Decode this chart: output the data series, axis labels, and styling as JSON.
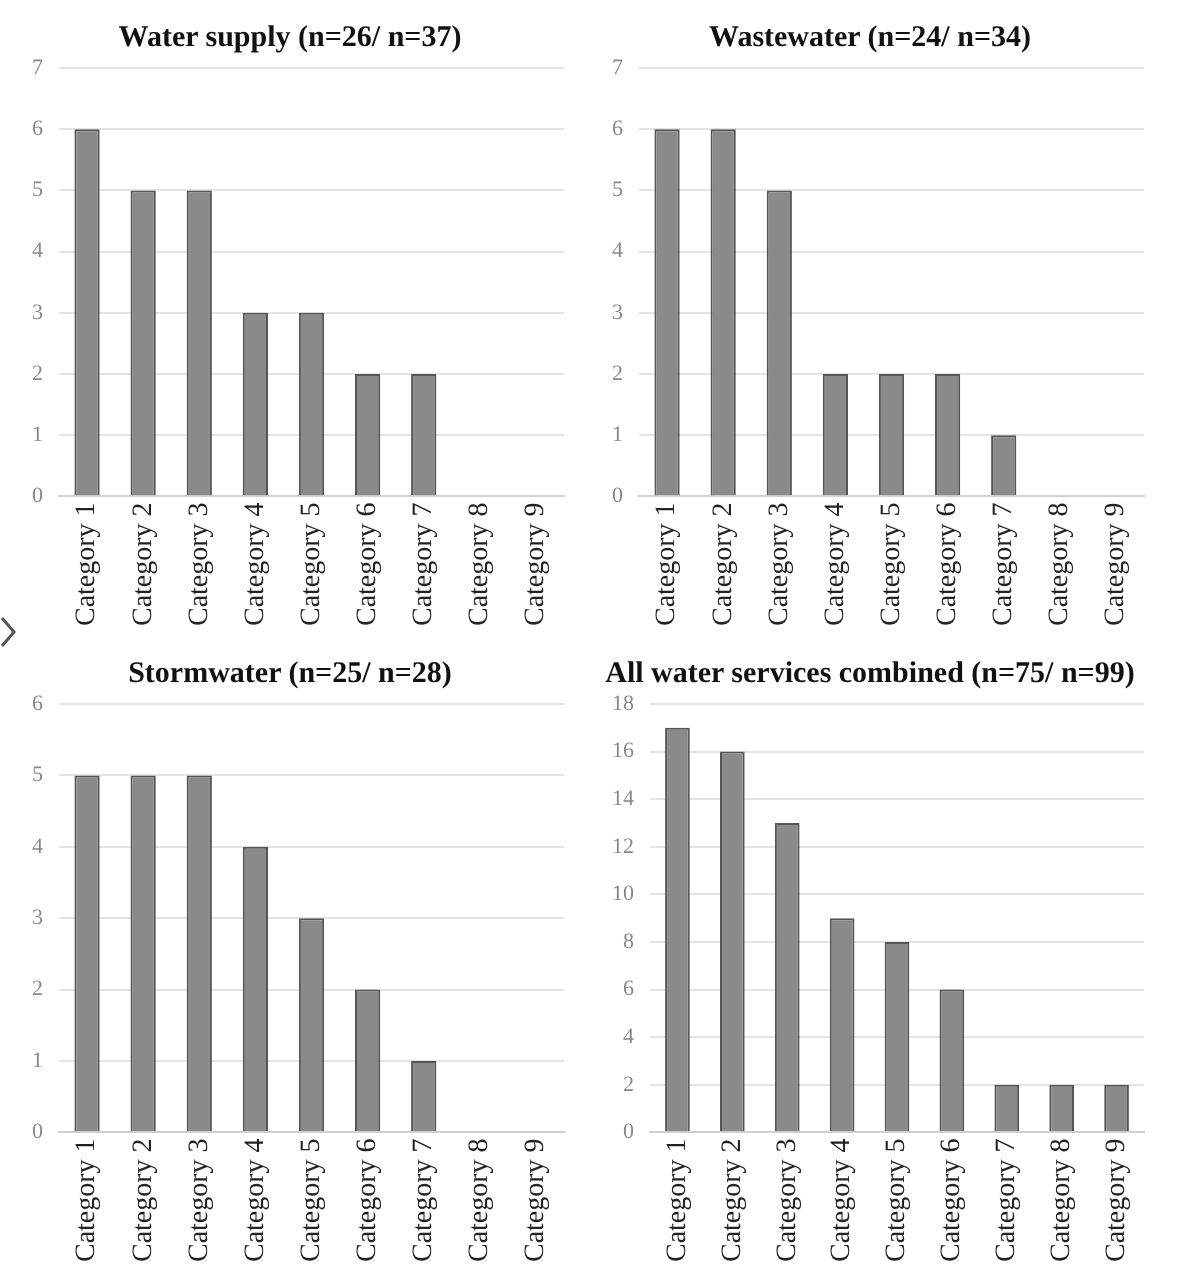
{
  "chart_data": [
    {
      "type": "bar",
      "title": "Water supply (n=26/ n=37)",
      "categories": [
        "Category 1",
        "Category 2",
        "Category 3",
        "Category 4",
        "Category 5",
        "Category 6",
        "Category 7",
        "Category 8",
        "Category 9"
      ],
      "values": [
        6,
        5,
        5,
        3,
        3,
        2,
        2,
        0,
        0
      ],
      "color": "#8a8a8a",
      "ylim": [
        0,
        7
      ],
      "yticks": [
        0,
        1,
        2,
        3,
        4,
        5,
        6,
        7
      ],
      "grid": "y"
    },
    {
      "type": "bar",
      "title": "Wastewater (n=24/ n=34)",
      "categories": [
        "Category 1",
        "Category 2",
        "Category 3",
        "Category 4",
        "Category 5",
        "Category 6",
        "Category 7",
        "Category 8",
        "Category 9"
      ],
      "values": [
        6,
        6,
        5,
        2,
        2,
        2,
        1,
        0,
        0
      ],
      "color": "#8a8a8a",
      "ylim": [
        0,
        7
      ],
      "yticks": [
        0,
        1,
        2,
        3,
        4,
        5,
        6,
        7
      ],
      "grid": "y"
    },
    {
      "type": "bar",
      "title": "Stormwater (n=25/ n=28)",
      "categories": [
        "Category 1",
        "Category 2",
        "Category 3",
        "Category 4",
        "Category 5",
        "Category 6",
        "Category 7",
        "Category 8",
        "Category 9"
      ],
      "values": [
        5,
        5,
        5,
        4,
        3,
        2,
        1,
        0,
        0
      ],
      "color": "#8a8a8a",
      "ylim": [
        0,
        6
      ],
      "yticks": [
        0,
        1,
        2,
        3,
        4,
        5,
        6
      ],
      "grid": "y"
    },
    {
      "type": "bar",
      "title": "All water services combined (n=75/ n=99)",
      "categories": [
        "Category 1",
        "Category 2",
        "Category 3",
        "Category 4",
        "Category 5",
        "Category 6",
        "Category 7",
        "Category 8",
        "Category 9"
      ],
      "values": [
        17,
        16,
        13,
        9,
        8,
        6,
        2,
        2,
        2
      ],
      "color": "#8a8a8a",
      "ylim": [
        0,
        18
      ],
      "yticks": [
        0,
        2,
        4,
        6,
        8,
        10,
        12,
        14,
        16,
        18
      ],
      "grid": "y"
    }
  ]
}
